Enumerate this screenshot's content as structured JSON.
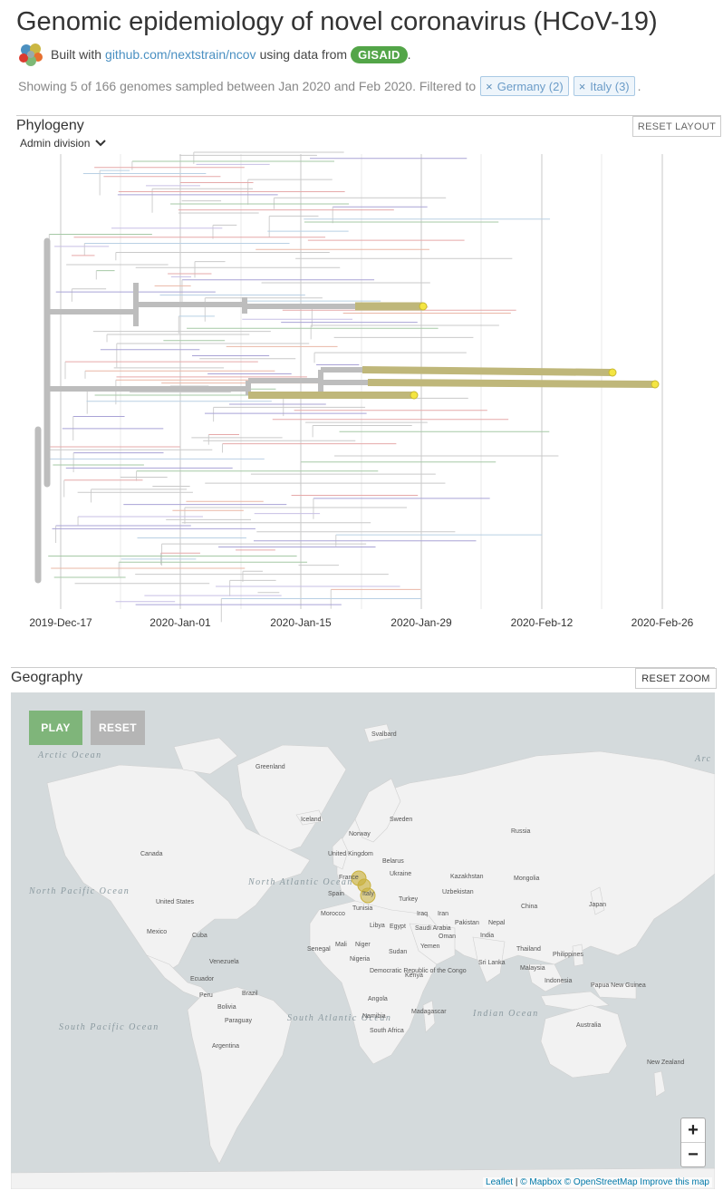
{
  "header": {
    "title": "Genomic epidemiology of novel coronavirus (HCoV-19)",
    "built_prefix": "Built with",
    "link": "github.com/nextstrain/ncov",
    "using_data": "using data from",
    "gisaid": "GISAID",
    "period": "."
  },
  "filter_bar": {
    "summary": "Showing 5 of 166 genomes sampled between Jan 2020 and Feb 2020. Filtered to",
    "filters": [
      {
        "remove": "×",
        "label": "Germany (2)"
      },
      {
        "remove": "×",
        "label": "Italy (3)"
      }
    ],
    "trailing": "."
  },
  "phylogeny": {
    "title": "Phylogeny",
    "reset_label": "RESET LAYOUT",
    "color_by": "Admin division",
    "x_ticks": [
      "2019-Dec-17",
      "2020-Jan-01",
      "2020-Jan-15",
      "2020-Jan-29",
      "2020-Feb-12",
      "2020-Feb-26"
    ]
  },
  "geography": {
    "title": "Geography",
    "reset_label": "RESET ZOOM",
    "play_label": "PLAY",
    "reset_map_label": "RESET",
    "zoom_in": "+",
    "zoom_out": "−",
    "ocean_labels": [
      "Arctic Ocean",
      "North Atlantic Ocean",
      "South Atlantic Ocean",
      "North Pacific Ocean",
      "South Pacific Ocean",
      "Indian Ocean",
      "Arc"
    ],
    "country_labels": [
      "Greenland",
      "Iceland",
      "Svalbard",
      "Sweden",
      "Norway",
      "United Kingdom",
      "Belarus",
      "Ukraine",
      "France",
      "Spain",
      "Italy",
      "Turkey",
      "Russia",
      "Kazakhstan",
      "Mongolia",
      "Uzbekistan",
      "China",
      "Japan",
      "Canada",
      "United States",
      "Mexico",
      "Cuba",
      "Venezuela",
      "Ecuador",
      "Peru",
      "Brazil",
      "Bolivia",
      "Paraguay",
      "Argentina",
      "Morocco",
      "Tunisia",
      "Libya",
      "Egypt",
      "Saudi Arabia",
      "Iraq",
      "Iran",
      "Pakistan",
      "India",
      "Nepal",
      "Oman",
      "Yemen",
      "Sudan",
      "Mali",
      "Niger",
      "Senegal",
      "Nigeria",
      "Democratic Republic of the Congo",
      "Kenya",
      "Angola",
      "Namibia",
      "South Africa",
      "Madagascar",
      "Sri Lanka",
      "Thailand",
      "Malaysia",
      "Indonesia",
      "Philippines",
      "Papua New Guinea",
      "Australia",
      "New Zealand"
    ],
    "attribution": {
      "leaflet": "Leaflet",
      "sep": "|",
      "mapbox": "© Mapbox",
      "osm": "© OpenStreetMap",
      "improve": "Improve this map"
    }
  },
  "colors": {
    "branch_gray": "#bdbdbd",
    "highlight": "#bfb77a",
    "tip_yellow": "#f4e542",
    "ocean": "#d4dadc",
    "land": "#f2f2f2",
    "play_green": "#7fb57a",
    "reset_gray": "#b5b5b5"
  }
}
